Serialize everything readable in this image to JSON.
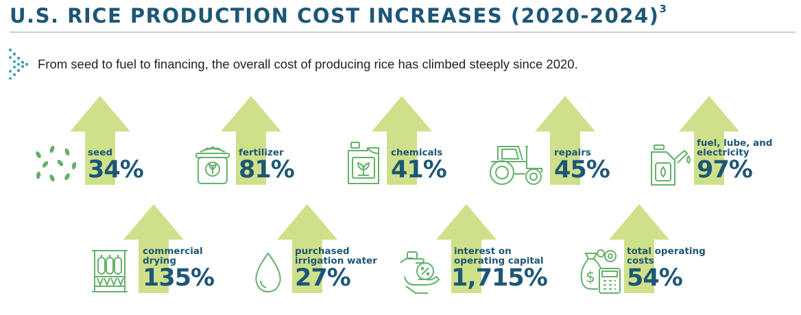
{
  "header": {
    "title": "U.S. RICE PRODUCTION COST INCREASES (2020-2024)",
    "footnote": "3"
  },
  "subtitle": "From seed to fuel to financing, the overall cost of producing rice has climbed steeply since 2020.",
  "colors": {
    "title": "#1d5676",
    "arrow": "#cfe08a",
    "icon": "#64b068"
  },
  "items": [
    {
      "label": "seed",
      "value": "34%",
      "icon": "seeds-icon"
    },
    {
      "label": "fertilizer",
      "value": "81%",
      "icon": "fertilizer-bag-icon"
    },
    {
      "label": "chemicals",
      "value": "41%",
      "icon": "chemical-jug-icon"
    },
    {
      "label": "repairs",
      "value": "45%",
      "icon": "tractor-icon"
    },
    {
      "label": "fuel, lube, and electricity",
      "value": "97%",
      "icon": "fuel-can-icon"
    },
    {
      "label": "commercial drying",
      "value": "135%",
      "icon": "grain-dryer-icon"
    },
    {
      "label": "purchased irrigation water",
      "value": "27%",
      "icon": "water-drop-icon"
    },
    {
      "label": "interest on operating capital",
      "value": "1,715%",
      "icon": "money-hand-icon"
    },
    {
      "label": "total operating costs",
      "value": "54%",
      "icon": "money-bag-calculator-icon"
    }
  ]
}
